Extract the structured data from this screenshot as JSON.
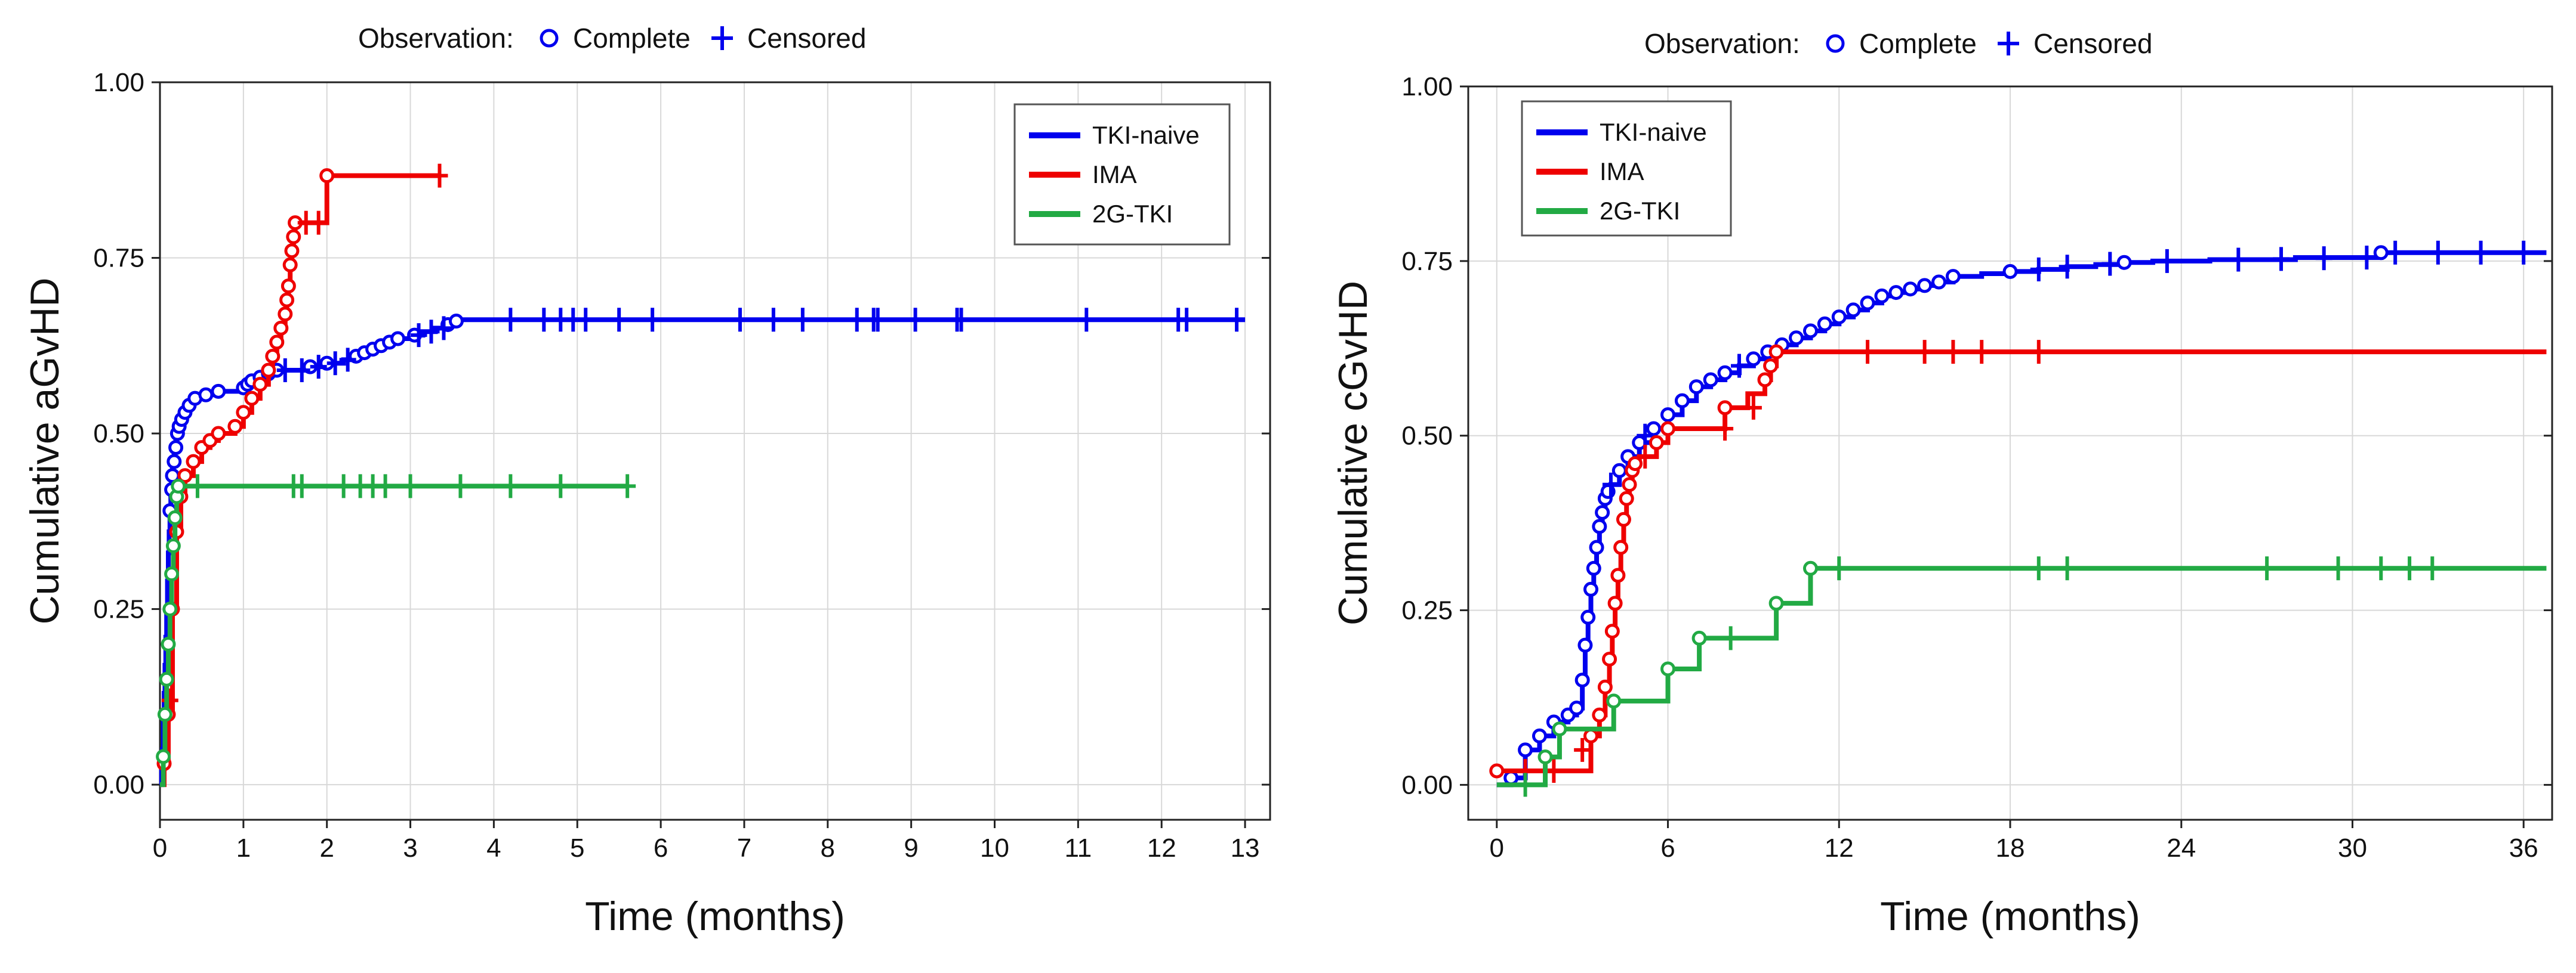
{
  "chart_data": [
    {
      "type": "line",
      "step": true,
      "title": "",
      "xlabel": "Time (months)",
      "ylabel": "Cumulative aGvHD",
      "xlim": [
        0,
        13.3
      ],
      "ylim": [
        -0.05,
        1.0
      ],
      "x_ticks": [
        0,
        1,
        2,
        3,
        4,
        5,
        6,
        7,
        8,
        9,
        10,
        11,
        12,
        13
      ],
      "y_ticks": [
        0.0,
        0.25,
        0.5,
        0.75,
        1.0
      ],
      "y_tick_labels": [
        "0.00",
        "0.25",
        "0.50",
        "0.75",
        "1.00"
      ],
      "grid": true,
      "observation_legend": {
        "title": "Observation:",
        "complete": "Complete",
        "censored": "Censored"
      },
      "legend_position": "top-right",
      "series": [
        {
          "name": "TKI-naive",
          "color": "#0000ee",
          "x": [
            0,
            0.02,
            0.03,
            0.04,
            0.05,
            0.06,
            0.07,
            0.08,
            0.09,
            0.1,
            0.11,
            0.12,
            0.13,
            0.14,
            0.15,
            0.17,
            0.19,
            0.21,
            0.23,
            0.26,
            0.3,
            0.35,
            0.42,
            0.55,
            0.7,
            0.9,
            1.0,
            1.05,
            1.1,
            1.2,
            1.3,
            1.4,
            1.5,
            1.6,
            1.8,
            2.0,
            2.2,
            2.35,
            2.45,
            2.55,
            2.65,
            2.75,
            2.85,
            2.95,
            3.05,
            3.15,
            3.3,
            3.45,
            3.55,
            3.6,
            13.0
          ],
          "y": [
            0,
            0.02,
            0.05,
            0.09,
            0.13,
            0.17,
            0.21,
            0.25,
            0.29,
            0.33,
            0.36,
            0.39,
            0.42,
            0.44,
            0.46,
            0.48,
            0.5,
            0.51,
            0.52,
            0.53,
            0.54,
            0.545,
            0.55,
            0.555,
            0.56,
            0.56,
            0.565,
            0.57,
            0.575,
            0.58,
            0.585,
            0.59,
            0.59,
            0.59,
            0.595,
            0.6,
            0.605,
            0.61,
            0.615,
            0.62,
            0.625,
            0.63,
            0.635,
            0.635,
            0.64,
            0.645,
            0.65,
            0.655,
            0.66,
            0.662,
            0.662
          ],
          "censored_x": [
            1.5,
            1.7,
            1.9,
            2.1,
            2.25,
            3.1,
            3.25,
            3.4,
            4.2,
            4.6,
            4.8,
            4.95,
            5.1,
            5.5,
            5.9,
            6.95,
            7.35,
            7.7,
            8.35,
            8.55,
            8.6,
            9.05,
            9.55,
            9.6,
            11.1,
            12.2,
            12.3,
            12.9
          ],
          "censored_y": [
            0.59,
            0.59,
            0.595,
            0.6,
            0.605,
            0.64,
            0.645,
            0.65,
            0.662,
            0.662,
            0.662,
            0.662,
            0.662,
            0.662,
            0.662,
            0.662,
            0.662,
            0.662,
            0.662,
            0.662,
            0.662,
            0.662,
            0.662,
            0.662,
            0.662,
            0.662,
            0.662,
            0.662
          ],
          "complete_x": [
            0.12,
            0.14,
            0.15,
            0.17,
            0.19,
            0.21,
            0.23,
            0.26,
            0.3,
            0.35,
            0.42,
            0.55,
            0.7,
            1.0,
            1.05,
            1.1,
            1.2,
            1.3,
            1.4,
            1.8,
            2.0,
            2.35,
            2.45,
            2.55,
            2.65,
            2.75,
            2.85,
            3.05,
            3.45,
            3.55
          ],
          "complete_y": [
            0.39,
            0.42,
            0.44,
            0.46,
            0.48,
            0.5,
            0.51,
            0.52,
            0.53,
            0.54,
            0.55,
            0.555,
            0.56,
            0.565,
            0.57,
            0.575,
            0.58,
            0.585,
            0.59,
            0.595,
            0.6,
            0.61,
            0.615,
            0.62,
            0.625,
            0.63,
            0.635,
            0.64,
            0.655,
            0.66
          ]
        },
        {
          "name": "IMA",
          "color": "#ee0000",
          "x": [
            0,
            0.05,
            0.1,
            0.15,
            0.2,
            0.25,
            0.3,
            0.4,
            0.5,
            0.6,
            0.7,
            0.8,
            0.9,
            1.0,
            1.1,
            1.2,
            1.3,
            1.35,
            1.4,
            1.45,
            1.5,
            1.52,
            1.54,
            1.56,
            1.58,
            1.6,
            1.62,
            1.98,
            2.0,
            3.35
          ],
          "y": [
            0,
            0.03,
            0.1,
            0.25,
            0.36,
            0.41,
            0.44,
            0.46,
            0.48,
            0.49,
            0.5,
            0.5,
            0.51,
            0.53,
            0.55,
            0.57,
            0.59,
            0.61,
            0.63,
            0.65,
            0.67,
            0.69,
            0.71,
            0.74,
            0.76,
            0.78,
            0.8,
            0.8,
            0.867,
            0.867
          ],
          "censored_x": [
            0.12,
            1.75,
            1.9,
            3.35
          ],
          "censored_y": [
            0.12,
            0.8,
            0.8,
            0.867
          ],
          "complete_x": [
            0.05,
            0.1,
            0.15,
            0.2,
            0.25,
            0.3,
            0.4,
            0.5,
            0.6,
            0.7,
            0.9,
            1.0,
            1.1,
            1.2,
            1.3,
            1.35,
            1.4,
            1.45,
            1.5,
            1.52,
            1.54,
            1.56,
            1.58,
            1.6,
            1.62,
            2.0
          ],
          "complete_y": [
            0.03,
            0.1,
            0.25,
            0.36,
            0.41,
            0.44,
            0.46,
            0.48,
            0.49,
            0.5,
            0.51,
            0.53,
            0.55,
            0.57,
            0.59,
            0.61,
            0.63,
            0.65,
            0.67,
            0.69,
            0.71,
            0.74,
            0.76,
            0.78,
            0.8,
            0.867
          ]
        },
        {
          "name": "2G-TKI",
          "color": "#22aa44",
          "x": [
            0,
            0.04,
            0.06,
            0.08,
            0.1,
            0.12,
            0.14,
            0.16,
            0.18,
            0.2,
            0.22,
            5.6
          ],
          "y": [
            0,
            0.04,
            0.1,
            0.15,
            0.2,
            0.25,
            0.3,
            0.34,
            0.38,
            0.41,
            0.425,
            0.425
          ],
          "censored_x": [
            0.45,
            1.6,
            1.7,
            2.2,
            2.4,
            2.55,
            2.7,
            3.0,
            3.6,
            4.2,
            4.8,
            5.6
          ],
          "censored_y": [
            0.425,
            0.425,
            0.425,
            0.425,
            0.425,
            0.425,
            0.425,
            0.425,
            0.425,
            0.425,
            0.425,
            0.425
          ],
          "complete_x": [
            0.04,
            0.06,
            0.08,
            0.1,
            0.12,
            0.14,
            0.16,
            0.18,
            0.2,
            0.22
          ],
          "complete_y": [
            0.04,
            0.1,
            0.15,
            0.2,
            0.25,
            0.3,
            0.34,
            0.38,
            0.41,
            0.425
          ]
        }
      ]
    },
    {
      "type": "line",
      "step": true,
      "title": "",
      "xlabel": "Time (months)",
      "ylabel": "Cumulative cGvHD",
      "xlim": [
        -1,
        37
      ],
      "ylim": [
        -0.05,
        1.0
      ],
      "x_ticks": [
        0,
        6,
        12,
        18,
        24,
        30,
        36
      ],
      "y_ticks": [
        0.0,
        0.25,
        0.5,
        0.75,
        1.0
      ],
      "y_tick_labels": [
        "0.00",
        "0.25",
        "0.50",
        "0.75",
        "1.00"
      ],
      "grid": true,
      "observation_legend": {
        "title": "Observation:",
        "complete": "Complete",
        "censored": "Censored"
      },
      "legend_position": "top-left",
      "series": [
        {
          "name": "TKI-naive",
          "color": "#0000ee",
          "x": [
            0,
            0.5,
            1.0,
            1.5,
            2.0,
            2.5,
            2.8,
            3.0,
            3.1,
            3.2,
            3.3,
            3.4,
            3.5,
            3.6,
            3.7,
            3.8,
            3.9,
            4.0,
            4.3,
            4.6,
            5.0,
            5.5,
            6.0,
            6.5,
            7.0,
            7.5,
            8.0,
            8.5,
            9.0,
            9.5,
            10.0,
            10.5,
            11.0,
            11.5,
            12.0,
            12.5,
            13.0,
            13.5,
            14.0,
            14.5,
            15.0,
            15.5,
            16.0,
            17.0,
            18.0,
            19.0,
            20.0,
            21.0,
            22.0,
            23.0,
            25.0,
            28.0,
            31.0,
            36.8
          ],
          "y": [
            0,
            0.01,
            0.05,
            0.07,
            0.09,
            0.1,
            0.11,
            0.15,
            0.2,
            0.24,
            0.28,
            0.31,
            0.34,
            0.37,
            0.39,
            0.41,
            0.42,
            0.43,
            0.45,
            0.47,
            0.49,
            0.51,
            0.53,
            0.55,
            0.57,
            0.58,
            0.59,
            0.6,
            0.61,
            0.62,
            0.63,
            0.64,
            0.65,
            0.66,
            0.67,
            0.68,
            0.69,
            0.7,
            0.705,
            0.71,
            0.715,
            0.72,
            0.728,
            0.732,
            0.735,
            0.738,
            0.742,
            0.745,
            0.748,
            0.75,
            0.752,
            0.755,
            0.762,
            0.762
          ],
          "censored_x": [
            4.0,
            5.2,
            8.5,
            19.0,
            20.0,
            21.5,
            23.5,
            26.0,
            27.5,
            29.0,
            30.5,
            31.5,
            33.0,
            34.5,
            36.0
          ],
          "censored_y": [
            0.43,
            0.5,
            0.6,
            0.738,
            0.742,
            0.746,
            0.75,
            0.752,
            0.753,
            0.754,
            0.755,
            0.762,
            0.762,
            0.762,
            0.762
          ],
          "complete_x": [
            0.5,
            1.0,
            1.5,
            2.0,
            2.5,
            2.8,
            3.0,
            3.1,
            3.2,
            3.3,
            3.4,
            3.5,
            3.6,
            3.7,
            3.8,
            3.9,
            4.3,
            4.6,
            5.0,
            5.5,
            6.0,
            6.5,
            7.0,
            7.5,
            8.0,
            9.0,
            9.5,
            10.0,
            10.5,
            11.0,
            11.5,
            12.0,
            12.5,
            13.0,
            13.5,
            14.0,
            14.5,
            15.0,
            15.5,
            16.0,
            18.0,
            22.0,
            31.0
          ],
          "complete_y": [
            0.01,
            0.05,
            0.07,
            0.09,
            0.1,
            0.11,
            0.15,
            0.2,
            0.24,
            0.28,
            0.31,
            0.34,
            0.37,
            0.39,
            0.41,
            0.42,
            0.45,
            0.47,
            0.49,
            0.51,
            0.53,
            0.55,
            0.57,
            0.58,
            0.59,
            0.61,
            0.62,
            0.63,
            0.64,
            0.65,
            0.66,
            0.67,
            0.68,
            0.69,
            0.7,
            0.705,
            0.71,
            0.715,
            0.72,
            0.728,
            0.735,
            0.748,
            0.762
          ]
        },
        {
          "name": "IMA",
          "color": "#ee0000",
          "x": [
            0,
            3.0,
            3.3,
            3.6,
            3.8,
            3.95,
            4.05,
            4.15,
            4.25,
            4.35,
            4.45,
            4.55,
            4.65,
            4.75,
            4.85,
            5.0,
            5.6,
            6.0,
            8.0,
            8.8,
            9.4,
            9.6,
            9.8,
            36.8
          ],
          "y": [
            0.02,
            0.02,
            0.07,
            0.1,
            0.14,
            0.18,
            0.22,
            0.26,
            0.3,
            0.34,
            0.38,
            0.41,
            0.43,
            0.45,
            0.46,
            0.47,
            0.49,
            0.51,
            0.54,
            0.56,
            0.58,
            0.6,
            0.62,
            0.62
          ],
          "censored_x": [
            1.0,
            2.0,
            3.0,
            5.2,
            8.0,
            9.0,
            13.0,
            15.0,
            16.0,
            17.0,
            19.0
          ],
          "censored_y": [
            0.02,
            0.02,
            0.05,
            0.47,
            0.51,
            0.54,
            0.62,
            0.62,
            0.62,
            0.62,
            0.62
          ],
          "complete_x": [
            0,
            3.3,
            3.6,
            3.8,
            3.95,
            4.05,
            4.15,
            4.25,
            4.35,
            4.45,
            4.55,
            4.65,
            4.75,
            4.85,
            5.6,
            6.0,
            8.0,
            9.4,
            9.6,
            9.8
          ],
          "complete_y": [
            0.02,
            0.07,
            0.1,
            0.14,
            0.18,
            0.22,
            0.26,
            0.3,
            0.34,
            0.38,
            0.41,
            0.43,
            0.45,
            0.46,
            0.49,
            0.51,
            0.54,
            0.58,
            0.6,
            0.62
          ]
        },
        {
          "name": "2G-TKI",
          "color": "#22aa44",
          "x": [
            0,
            1.7,
            2.2,
            4.1,
            6.0,
            7.1,
            9.8,
            11.0,
            36.8
          ],
          "y": [
            0,
            0.04,
            0.08,
            0.12,
            0.166,
            0.21,
            0.26,
            0.31,
            0.31
          ],
          "censored_x": [
            1.0,
            8.2,
            12.0,
            19.0,
            20.0,
            27.0,
            29.5,
            31.0,
            32.0,
            32.8
          ],
          "censored_y": [
            0,
            0.21,
            0.31,
            0.31,
            0.31,
            0.31,
            0.31,
            0.31,
            0.31,
            0.31
          ],
          "complete_x": [
            1.7,
            2.2,
            4.1,
            6.0,
            7.1,
            9.8,
            11.0
          ],
          "complete_y": [
            0.04,
            0.08,
            0.12,
            0.166,
            0.21,
            0.26,
            0.31
          ]
        }
      ]
    }
  ]
}
